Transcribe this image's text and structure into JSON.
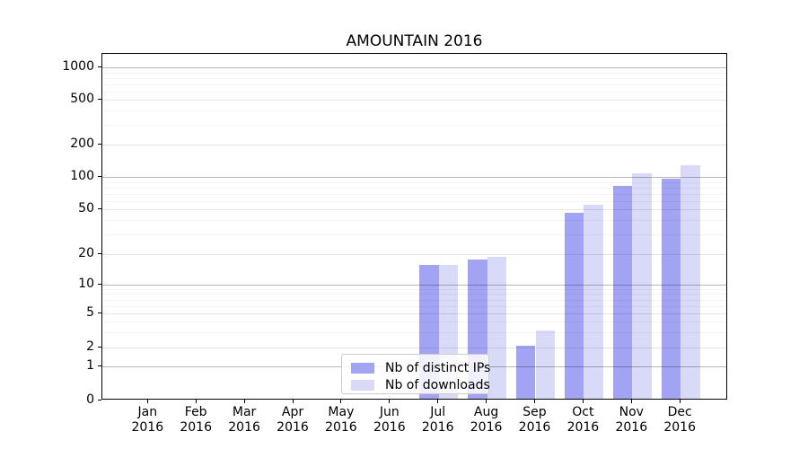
{
  "title": "AMOUNTAIN 2016",
  "chart_data": {
    "type": "bar",
    "title": "AMOUNTAIN 2016",
    "months": [
      "Jan",
      "Feb",
      "Mar",
      "Apr",
      "May",
      "Jun",
      "Jul",
      "Aug",
      "Sep",
      "Oct",
      "Nov",
      "Dec"
    ],
    "year": "2016",
    "series": [
      {
        "name": "Nb of distinct IPs",
        "color": "#a3a3f4",
        "values": [
          0,
          0,
          0,
          0,
          0,
          0,
          15,
          17,
          2,
          45,
          80,
          93
        ]
      },
      {
        "name": "Nb of downloads",
        "color": "#d9d9f8",
        "values": [
          0,
          0,
          0,
          0,
          0,
          0,
          15,
          18,
          3,
          53,
          105,
          123
        ]
      }
    ],
    "y_ticks": [
      0,
      1,
      2,
      5,
      10,
      20,
      50,
      100,
      200,
      500,
      1000
    ],
    "y_minor_ticks": [
      3,
      4,
      6,
      7,
      8,
      9,
      30,
      40,
      60,
      70,
      80,
      90,
      300,
      400,
      600,
      700,
      800,
      900
    ],
    "y_scale": "symlog",
    "ylim": [
      0,
      1300
    ],
    "grid": true,
    "legend_position": "lower center",
    "xlabel": "",
    "ylabel": ""
  }
}
